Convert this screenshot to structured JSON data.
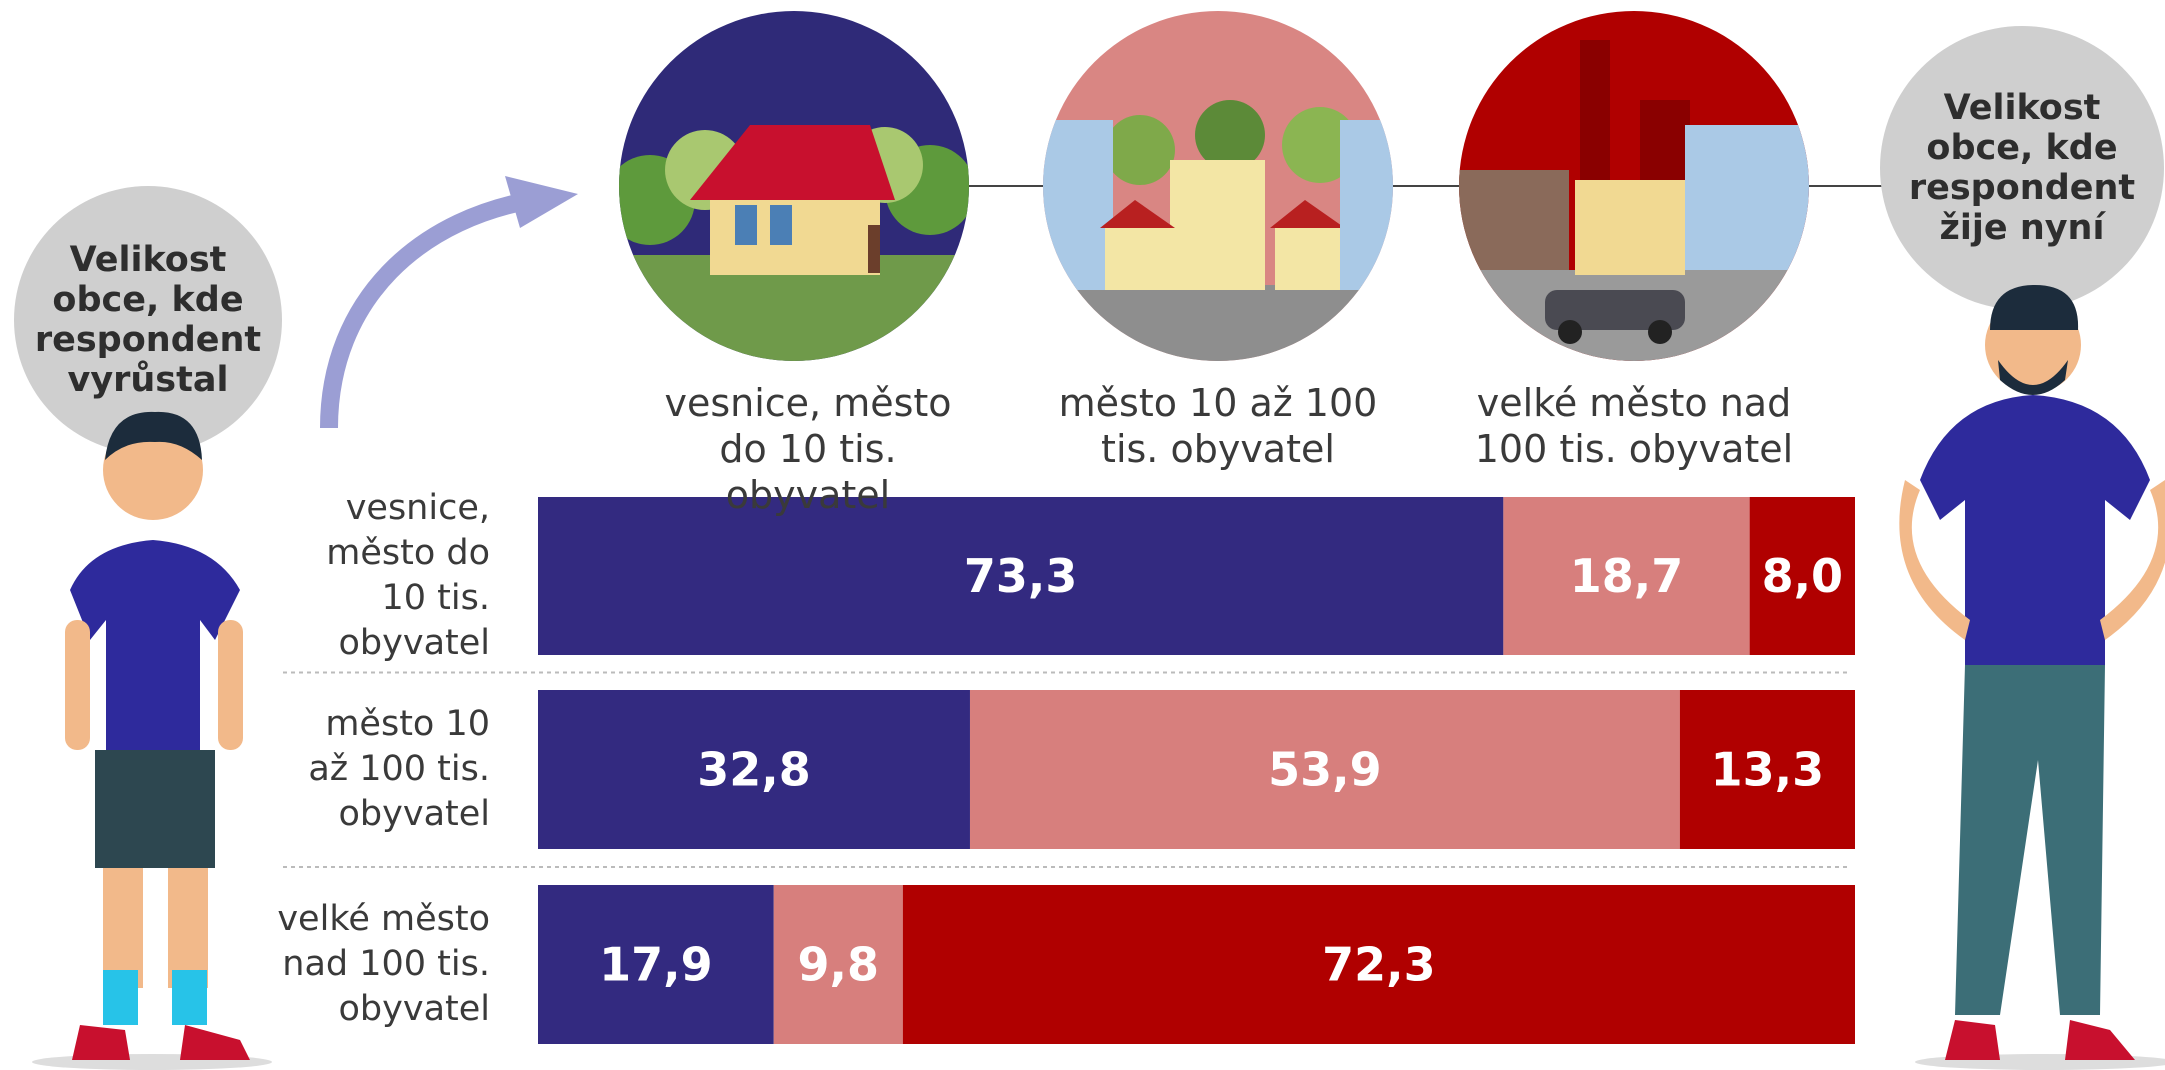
{
  "chart_data": {
    "type": "stacked-bar",
    "orientation": "horizontal",
    "annotations": [
      "Velikost obce, kde respondent vyrůstal",
      "Velikost obce, kde respondent žije nyní"
    ],
    "categories": [
      "vesnice, město do 10 tis. obyvatel",
      "město 10 až 100 tis. obyvatel",
      "velké město nad 100 tis. obyvatel"
    ],
    "xlim": [
      0,
      100
    ],
    "series": [
      {
        "name": "vesnice, město do 10 tis. obyvatel",
        "color": "#332a80",
        "values": [
          73.3,
          32.8,
          17.9
        ],
        "value_labels": [
          "73,3",
          "32,8",
          "17,9"
        ]
      },
      {
        "name": "město 10 až 100 tis. obyvatel",
        "color": "#d77f7d",
        "values": [
          18.7,
          53.9,
          9.8
        ],
        "value_labels": [
          "18,7",
          "53,9",
          "9,8"
        ]
      },
      {
        "name": "velké město nad 100 tis. obyvatel",
        "color": "#b00000",
        "values": [
          8.0,
          13.3,
          72.3
        ],
        "value_labels": [
          "8,0",
          "13,3",
          "72,3"
        ]
      }
    ]
  }
}
